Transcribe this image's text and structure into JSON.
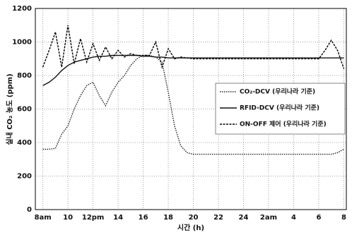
{
  "chart_data": {
    "type": "line",
    "x_label": "시간 (h)",
    "y_label": "실내 CO₂ 농도 (ppm)",
    "x": [
      8,
      8.5,
      9,
      9.5,
      10,
      10.5,
      11,
      11.5,
      12,
      12.5,
      13,
      13.5,
      14,
      14.5,
      15,
      15.5,
      16,
      16.5,
      17,
      17.5,
      18,
      18.5,
      19,
      19.5,
      20,
      20.5,
      21,
      21.5,
      22,
      22.5,
      23,
      23.5,
      24,
      24.5,
      25,
      25.5,
      26,
      26.5,
      27,
      27.5,
      28,
      28.5,
      29,
      29.5,
      30,
      30.5,
      31,
      31.5,
      32
    ],
    "series": [
      {
        "name": "CO₂-DCV (우리나라 기준)",
        "color": "#222222",
        "style": "dotted",
        "values": [
          360,
          360,
          365,
          450,
          500,
          600,
          680,
          740,
          760,
          680,
          620,
          700,
          760,
          800,
          860,
          900,
          920,
          920,
          910,
          880,
          700,
          500,
          380,
          340,
          330,
          330,
          330,
          330,
          330,
          330,
          330,
          330,
          330,
          330,
          330,
          330,
          330,
          330,
          330,
          330,
          330,
          330,
          330,
          330,
          330,
          330,
          330,
          340,
          360
        ]
      },
      {
        "name": "RFID-DCV (우리나라 기준)",
        "color": "#111111",
        "style": "solid",
        "values": [
          740,
          760,
          790,
          830,
          860,
          880,
          890,
          900,
          910,
          915,
          915,
          920,
          920,
          920,
          920,
          920,
          915,
          915,
          910,
          910,
          905,
          905,
          905,
          905,
          905,
          905,
          905,
          905,
          905,
          905,
          905,
          905,
          905,
          905,
          905,
          905,
          905,
          905,
          905,
          905,
          905,
          905,
          905,
          905,
          905,
          905,
          905,
          905,
          905
        ]
      },
      {
        "name": "ON-OFF 제어 (우리나라 기준)",
        "color": "#000000",
        "style": "dashed",
        "values": [
          850,
          950,
          1060,
          850,
          1100,
          870,
          1020,
          880,
          990,
          890,
          970,
          900,
          950,
          910,
          930,
          920,
          920,
          920,
          1000,
          850,
          960,
          900,
          910,
          905,
          900,
          900,
          900,
          900,
          900,
          900,
          900,
          900,
          900,
          900,
          900,
          900,
          900,
          900,
          900,
          900,
          900,
          900,
          900,
          900,
          900,
          950,
          1010,
          950,
          840
        ]
      }
    ],
    "xlim": [
      7.4,
      32.2
    ],
    "xticks": [
      {
        "value": 8,
        "label": "8am"
      },
      10,
      {
        "value": 12,
        "label": "12pm"
      },
      14,
      16,
      18,
      20,
      22,
      24,
      {
        "value": 26,
        "label": "2am"
      },
      {
        "value": 28,
        "label": "4"
      },
      {
        "value": 30,
        "label": "6"
      },
      {
        "value": 32,
        "label": "8"
      }
    ],
    "ylim": [
      0,
      1200
    ],
    "yticks": [
      0,
      200,
      400,
      600,
      800,
      1000,
      1200
    ],
    "grid": true,
    "legend": "center right"
  }
}
